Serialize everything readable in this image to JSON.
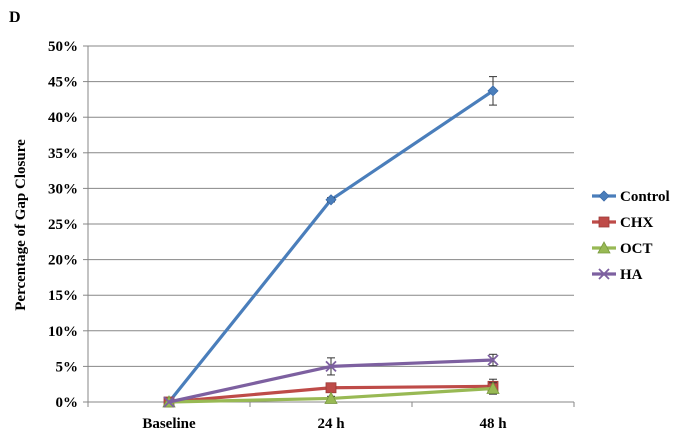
{
  "panel_label": "D",
  "chart_data": {
    "type": "line",
    "title": "",
    "xlabel": "",
    "ylabel": "Percentage of Gap Closure",
    "categories": [
      "Baseline",
      "24 h",
      "48 h"
    ],
    "ylim": [
      0,
      50
    ],
    "y_ticks": [
      "0%",
      "5%",
      "10%",
      "15%",
      "20%",
      "25%",
      "30%",
      "35%",
      "40%",
      "45%",
      "50%"
    ],
    "grid": true,
    "legend_position": "right",
    "series": [
      {
        "name": "Control",
        "color": "#4a7ebb",
        "marker": "diamond",
        "values": [
          0,
          28.4,
          43.7
        ],
        "errors": [
          0,
          0.3,
          2.0
        ]
      },
      {
        "name": "CHX",
        "color": "#be4b48",
        "marker": "square",
        "values": [
          0,
          2.0,
          2.2
        ],
        "errors": [
          0,
          0.5,
          1.0
        ]
      },
      {
        "name": "OCT",
        "color": "#98b954",
        "marker": "triangle",
        "values": [
          0,
          0.5,
          1.9
        ],
        "errors": [
          0,
          0.3,
          0.8
        ]
      },
      {
        "name": "HA",
        "color": "#7d60a0",
        "marker": "x",
        "values": [
          0,
          5.0,
          5.9
        ],
        "errors": [
          0,
          1.2,
          0.8
        ]
      }
    ]
  }
}
